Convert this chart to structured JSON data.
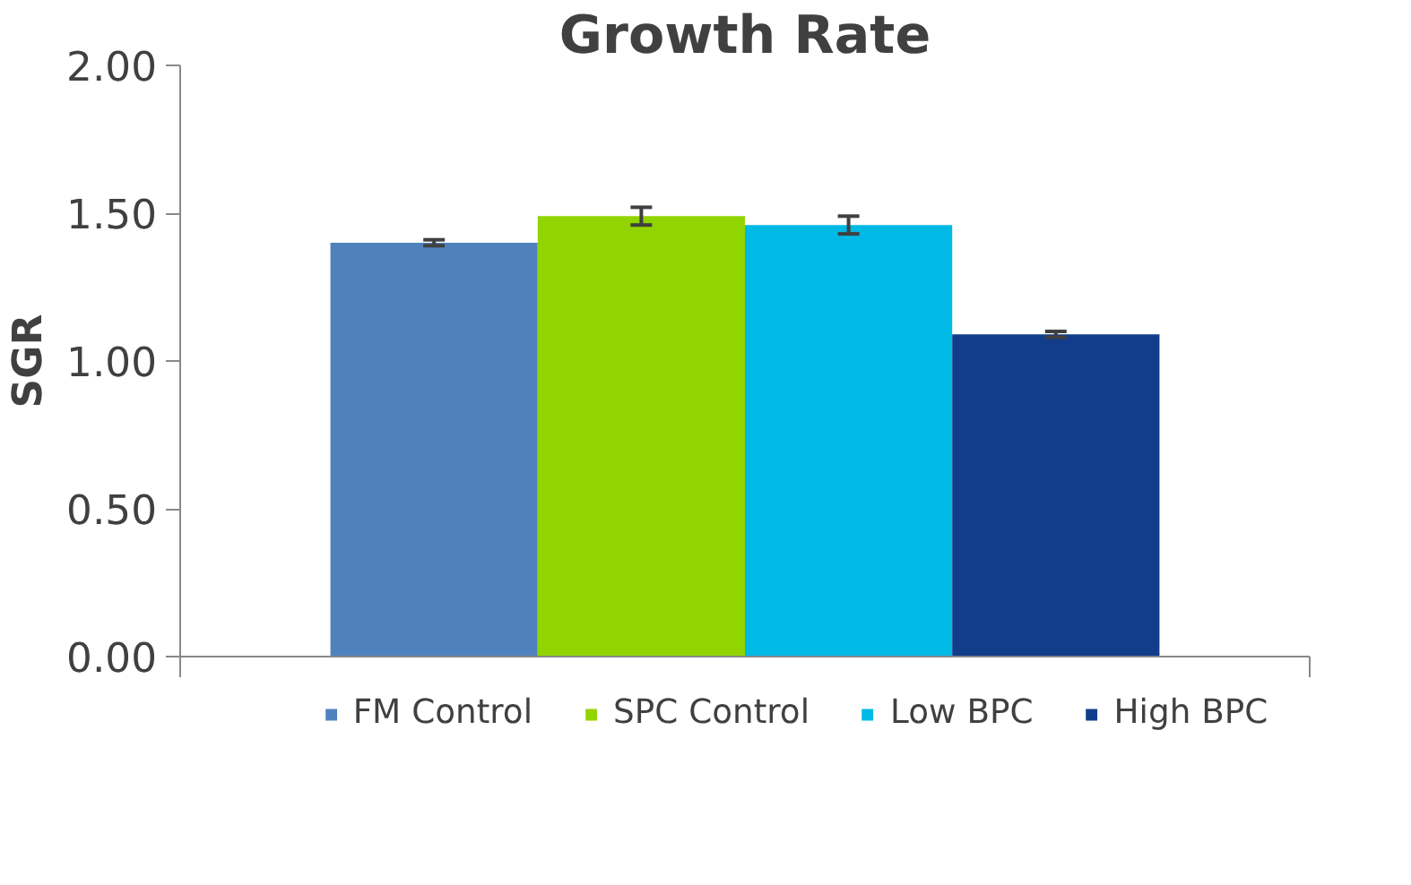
{
  "chart_data": {
    "type": "bar",
    "title": "Growth Rate",
    "ylabel": "SGR",
    "categories": [
      null
    ],
    "series": [
      {
        "name": "FM Control",
        "color": "#4f81bd",
        "values": [
          1.4
        ],
        "errors": [
          0.01
        ]
      },
      {
        "name": "SPC Control",
        "color": "#92d400",
        "values": [
          1.49
        ],
        "errors": [
          0.03
        ]
      },
      {
        "name": "Low BPC",
        "color": "#00b9e4",
        "values": [
          1.46
        ],
        "errors": [
          0.03
        ]
      },
      {
        "name": "High BPC",
        "color": "#123d8a",
        "values": [
          1.09
        ],
        "errors": [
          0.01
        ]
      }
    ],
    "ylim": [
      0,
      2
    ],
    "yticks": [
      {
        "value": 0,
        "label": "0.00"
      },
      {
        "value": 0.5,
        "label": "0.50"
      },
      {
        "value": 1,
        "label": "1.00"
      },
      {
        "value": 1.5,
        "label": "1.50"
      },
      {
        "value": 2,
        "label": "2.00"
      }
    ],
    "grid": false,
    "legend": "bottom"
  }
}
